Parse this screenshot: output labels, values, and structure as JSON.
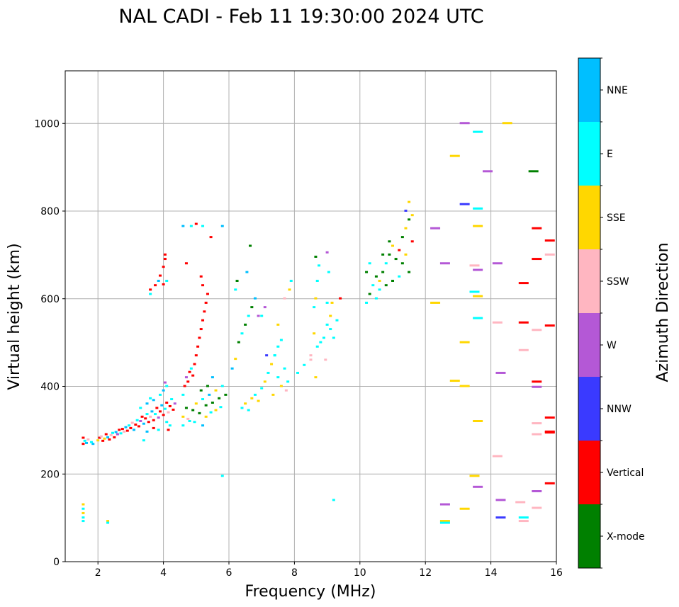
{
  "chart_data": {
    "type": "scatter",
    "title": "NAL CADI - Feb 11 19:30:00 2024 UTC",
    "xlabel": "Frequency (MHz)",
    "ylabel": "Virtual height (km)",
    "xlim": [
      1,
      16
    ],
    "ylim": [
      0,
      1120
    ],
    "xticks": [
      2,
      4,
      6,
      8,
      10,
      12,
      14,
      16
    ],
    "yticks": [
      0,
      200,
      400,
      600,
      800,
      1000
    ],
    "grid": true,
    "colorbar": {
      "title": "Azimuth Direction",
      "categories": [
        {
          "name": "X-mode",
          "color": "#008000"
        },
        {
          "name": "Vertical",
          "color": "#ff0000"
        },
        {
          "name": "NNW",
          "color": "#3a3aff"
        },
        {
          "name": "W",
          "color": "#b458d6"
        },
        {
          "name": "SSW",
          "color": "#ffb6c1"
        },
        {
          "name": "SSE",
          "color": "#ffd700"
        },
        {
          "name": "E",
          "color": "#00ffff"
        },
        {
          "name": "NNE",
          "color": "#00bfff"
        }
      ]
    },
    "points": [
      [
        1.55,
        282,
        "Vertical"
      ],
      [
        1.6,
        275,
        "E"
      ],
      [
        1.55,
        268,
        "Vertical"
      ],
      [
        1.65,
        270,
        "NNE"
      ],
      [
        1.7,
        278,
        "SSW"
      ],
      [
        1.8,
        272,
        "E"
      ],
      [
        1.85,
        268,
        "NNE"
      ],
      [
        2.0,
        276,
        "SSE"
      ],
      [
        2.05,
        282,
        "Vertical"
      ],
      [
        2.1,
        285,
        "SSW"
      ],
      [
        2.15,
        275,
        "Vertical"
      ],
      [
        2.2,
        280,
        "SSE"
      ],
      [
        2.25,
        290,
        "Vertical"
      ],
      [
        2.3,
        283,
        "NNE"
      ],
      [
        2.35,
        278,
        "Vertical"
      ],
      [
        2.4,
        288,
        "SSW"
      ],
      [
        2.45,
        293,
        "E"
      ],
      [
        2.5,
        283,
        "Vertical"
      ],
      [
        2.55,
        295,
        "NNE"
      ],
      [
        2.6,
        290,
        "W"
      ],
      [
        2.65,
        300,
        "Vertical"
      ],
      [
        2.7,
        292,
        "E"
      ],
      [
        2.75,
        302,
        "Vertical"
      ],
      [
        2.8,
        296,
        "SSW"
      ],
      [
        2.85,
        306,
        "NNE"
      ],
      [
        2.9,
        298,
        "Vertical"
      ],
      [
        2.95,
        310,
        "E"
      ],
      [
        3.0,
        304,
        "Vertical"
      ],
      [
        3.05,
        316,
        "SSW"
      ],
      [
        3.1,
        300,
        "NNE"
      ],
      [
        3.15,
        312,
        "Vertical"
      ],
      [
        3.2,
        322,
        "E"
      ],
      [
        3.25,
        308,
        "Vertical"
      ],
      [
        3.3,
        320,
        "W"
      ],
      [
        3.35,
        330,
        "Vertical"
      ],
      [
        3.4,
        314,
        "NNE"
      ],
      [
        3.45,
        326,
        "Vertical"
      ],
      [
        3.5,
        336,
        "E"
      ],
      [
        3.55,
        318,
        "Vertical"
      ],
      [
        3.6,
        330,
        "SSW"
      ],
      [
        3.65,
        342,
        "NNE"
      ],
      [
        3.7,
        322,
        "Vertical"
      ],
      [
        3.75,
        336,
        "E"
      ],
      [
        3.8,
        350,
        "Vertical"
      ],
      [
        3.85,
        328,
        "W"
      ],
      [
        3.9,
        342,
        "Vertical"
      ],
      [
        3.95,
        356,
        "NNE"
      ],
      [
        4.0,
        334,
        "Vertical"
      ],
      [
        4.05,
        348,
        "E"
      ],
      [
        4.1,
        362,
        "Vertical"
      ],
      [
        4.15,
        340,
        "SSW"
      ],
      [
        4.2,
        354,
        "Vertical"
      ],
      [
        4.25,
        370,
        "E"
      ],
      [
        4.3,
        346,
        "Vertical"
      ],
      [
        4.35,
        360,
        "W"
      ],
      [
        3.3,
        350,
        "E"
      ],
      [
        3.5,
        360,
        "NNE"
      ],
      [
        3.6,
        372,
        "E"
      ],
      [
        3.7,
        368,
        "NNE"
      ],
      [
        3.9,
        380,
        "E"
      ],
      [
        4.0,
        390,
        "NNE"
      ],
      [
        4.1,
        400,
        "E"
      ],
      [
        4.05,
        408,
        "W"
      ],
      [
        4.1,
        318,
        "E"
      ],
      [
        3.85,
        300,
        "E"
      ],
      [
        3.7,
        304,
        "Vertical"
      ],
      [
        3.5,
        296,
        "NNE"
      ],
      [
        3.4,
        276,
        "E"
      ],
      [
        4.15,
        300,
        "Vertical"
      ],
      [
        4.2,
        310,
        "E"
      ],
      [
        3.6,
        620,
        "Vertical"
      ],
      [
        3.6,
        610,
        "E"
      ],
      [
        3.75,
        630,
        "Vertical"
      ],
      [
        3.85,
        640,
        "NNE"
      ],
      [
        3.9,
        652,
        "Vertical"
      ],
      [
        4.0,
        672,
        "Vertical"
      ],
      [
        4.05,
        690,
        "Vertical"
      ],
      [
        4.05,
        700,
        "Vertical"
      ],
      [
        4.1,
        640,
        "E"
      ],
      [
        4.0,
        632,
        "Vertical"
      ],
      [
        4.6,
        380,
        "E"
      ],
      [
        4.65,
        400,
        "Vertical"
      ],
      [
        4.7,
        420,
        "W"
      ],
      [
        4.75,
        410,
        "Vertical"
      ],
      [
        4.8,
        432,
        "Vertical"
      ],
      [
        4.85,
        440,
        "E"
      ],
      [
        4.9,
        424,
        "Vertical"
      ],
      [
        4.95,
        450,
        "Vertical"
      ],
      [
        5.0,
        470,
        "Vertical"
      ],
      [
        5.05,
        490,
        "Vertical"
      ],
      [
        5.1,
        510,
        "Vertical"
      ],
      [
        5.15,
        530,
        "Vertical"
      ],
      [
        5.2,
        550,
        "Vertical"
      ],
      [
        5.25,
        570,
        "Vertical"
      ],
      [
        5.3,
        590,
        "Vertical"
      ],
      [
        5.35,
        610,
        "Vertical"
      ],
      [
        5.2,
        630,
        "Vertical"
      ],
      [
        5.15,
        650,
        "Vertical"
      ],
      [
        5.45,
        740,
        "Vertical"
      ],
      [
        4.7,
        680,
        "Vertical"
      ],
      [
        5.0,
        770,
        "Vertical"
      ],
      [
        4.6,
        765,
        "NNE"
      ],
      [
        4.85,
        765,
        "E"
      ],
      [
        5.2,
        765,
        "E"
      ],
      [
        5.8,
        765,
        "NNE"
      ],
      [
        4.6,
        330,
        "SSE"
      ],
      [
        4.7,
        350,
        "X-mode"
      ],
      [
        4.8,
        320,
        "E"
      ],
      [
        4.9,
        345,
        "X-mode"
      ],
      [
        5.0,
        360,
        "SSE"
      ],
      [
        5.1,
        338,
        "X-mode"
      ],
      [
        5.2,
        370,
        "E"
      ],
      [
        5.3,
        356,
        "X-mode"
      ],
      [
        5.4,
        380,
        "NNE"
      ],
      [
        5.5,
        362,
        "X-mode"
      ],
      [
        5.6,
        390,
        "SSE"
      ],
      [
        5.7,
        372,
        "X-mode"
      ],
      [
        5.8,
        400,
        "E"
      ],
      [
        5.9,
        380,
        "X-mode"
      ],
      [
        5.5,
        420,
        "NNE"
      ],
      [
        5.3,
        330,
        "SSE"
      ],
      [
        5.45,
        340,
        "E"
      ],
      [
        5.6,
        345,
        "SSE"
      ],
      [
        5.75,
        352,
        "E"
      ],
      [
        5.2,
        310,
        "NNE"
      ],
      [
        4.95,
        318,
        "E"
      ],
      [
        4.75,
        325,
        "SSW"
      ],
      [
        4.6,
        310,
        "E"
      ],
      [
        5.35,
        400,
        "X-mode"
      ],
      [
        5.15,
        390,
        "X-mode"
      ],
      [
        6.1,
        440,
        "NNE"
      ],
      [
        6.2,
        462,
        "SSE"
      ],
      [
        6.3,
        500,
        "X-mode"
      ],
      [
        6.4,
        520,
        "E"
      ],
      [
        6.5,
        540,
        "X-mode"
      ],
      [
        6.6,
        560,
        "E"
      ],
      [
        6.7,
        580,
        "X-mode"
      ],
      [
        6.8,
        600,
        "NNE"
      ],
      [
        6.2,
        620,
        "E"
      ],
      [
        6.25,
        640,
        "X-mode"
      ],
      [
        6.55,
        660,
        "NNE"
      ],
      [
        6.65,
        720,
        "X-mode"
      ],
      [
        6.4,
        350,
        "E"
      ],
      [
        6.5,
        360,
        "SSE"
      ],
      [
        6.6,
        345,
        "E"
      ],
      [
        6.7,
        372,
        "SSE"
      ],
      [
        6.8,
        380,
        "E"
      ],
      [
        6.9,
        366,
        "SSE"
      ],
      [
        7.0,
        395,
        "E"
      ],
      [
        7.1,
        410,
        "SSE"
      ],
      [
        7.2,
        430,
        "E"
      ],
      [
        7.3,
        450,
        "SSE"
      ],
      [
        7.4,
        470,
        "E"
      ],
      [
        7.5,
        490,
        "E"
      ],
      [
        7.6,
        505,
        "E"
      ],
      [
        7.0,
        560,
        "E"
      ],
      [
        7.1,
        580,
        "W"
      ],
      [
        7.15,
        470,
        "NNW"
      ],
      [
        6.9,
        560,
        "W"
      ],
      [
        7.35,
        380,
        "SSE"
      ],
      [
        7.5,
        420,
        "E"
      ],
      [
        7.6,
        400,
        "SSE"
      ],
      [
        7.7,
        440,
        "E"
      ],
      [
        7.75,
        390,
        "SSW"
      ],
      [
        7.8,
        410,
        "E"
      ],
      [
        7.7,
        600,
        "SSW"
      ],
      [
        7.9,
        640,
        "E"
      ],
      [
        7.85,
        620,
        "SSE"
      ],
      [
        7.5,
        540,
        "SSE"
      ],
      [
        7.4,
        470,
        "E"
      ],
      [
        8.1,
        430,
        "E"
      ],
      [
        8.3,
        448,
        "E"
      ],
      [
        8.5,
        470,
        "SSW"
      ],
      [
        8.7,
        490,
        "E"
      ],
      [
        8.9,
        510,
        "E"
      ],
      [
        9.1,
        530,
        "E"
      ],
      [
        9.3,
        550,
        "E"
      ],
      [
        8.6,
        520,
        "SSE"
      ],
      [
        8.8,
        500,
        "E"
      ],
      [
        9.0,
        540,
        "E"
      ],
      [
        8.6,
        580,
        "E"
      ],
      [
        8.65,
        600,
        "SSE"
      ],
      [
        8.7,
        640,
        "E"
      ],
      [
        8.65,
        695,
        "X-mode"
      ],
      [
        8.75,
        675,
        "E"
      ],
      [
        9.0,
        705,
        "W"
      ],
      [
        9.05,
        660,
        "E"
      ],
      [
        9.1,
        560,
        "SSE"
      ],
      [
        9.2,
        510,
        "E"
      ],
      [
        8.65,
        420,
        "SSE"
      ],
      [
        8.5,
        460,
        "SSW"
      ],
      [
        9.0,
        590,
        "E"
      ],
      [
        9.4,
        600,
        "Vertical"
      ],
      [
        9.2,
        140,
        "E"
      ],
      [
        8.95,
        460,
        "SSW"
      ],
      [
        10.2,
        590,
        "E"
      ],
      [
        10.3,
        610,
        "X-mode"
      ],
      [
        10.4,
        630,
        "E"
      ],
      [
        10.5,
        650,
        "X-mode"
      ],
      [
        10.6,
        640,
        "SSE"
      ],
      [
        10.7,
        660,
        "X-mode"
      ],
      [
        10.8,
        680,
        "E"
      ],
      [
        10.9,
        700,
        "X-mode"
      ],
      [
        11.0,
        720,
        "SSE"
      ],
      [
        11.1,
        690,
        "X-mode"
      ],
      [
        11.2,
        710,
        "Vertical"
      ],
      [
        11.3,
        740,
        "X-mode"
      ],
      [
        11.4,
        760,
        "SSE"
      ],
      [
        11.5,
        780,
        "X-mode"
      ],
      [
        11.6,
        730,
        "Vertical"
      ],
      [
        11.3,
        680,
        "X-mode"
      ],
      [
        11.4,
        700,
        "SSE"
      ],
      [
        11.5,
        660,
        "X-mode"
      ],
      [
        11.2,
        650,
        "E"
      ],
      [
        11.0,
        640,
        "X-mode"
      ],
      [
        10.6,
        620,
        "E"
      ],
      [
        10.8,
        630,
        "X-mode"
      ],
      [
        11.4,
        800,
        "NNW"
      ],
      [
        11.5,
        820,
        "SSE"
      ],
      [
        11.6,
        790,
        "SSE"
      ],
      [
        10.2,
        660,
        "X-mode"
      ],
      [
        10.3,
        680,
        "E"
      ],
      [
        10.5,
        600,
        "E"
      ],
      [
        10.7,
        700,
        "X-mode"
      ],
      [
        10.9,
        730,
        "X-mode"
      ],
      [
        12.3,
        760,
        "W"
      ],
      [
        12.6,
        680,
        "W"
      ],
      [
        12.3,
        590,
        "SSE"
      ],
      [
        12.9,
        925,
        "SSE"
      ],
      [
        13.2,
        815,
        "NNW"
      ],
      [
        13.2,
        1000,
        "W"
      ],
      [
        13.6,
        980,
        "E"
      ],
      [
        13.9,
        890,
        "W"
      ],
      [
        13.6,
        805,
        "E"
      ],
      [
        13.6,
        765,
        "SSE"
      ],
      [
        13.5,
        675,
        "SSW"
      ],
      [
        13.6,
        665,
        "W"
      ],
      [
        13.5,
        615,
        "E"
      ],
      [
        13.6,
        605,
        "SSE"
      ],
      [
        13.6,
        555,
        "E"
      ],
      [
        13.2,
        500,
        "SSE"
      ],
      [
        12.9,
        412,
        "SSE"
      ],
      [
        13.2,
        400,
        "SSE"
      ],
      [
        13.6,
        320,
        "SSE"
      ],
      [
        13.5,
        195,
        "SSE"
      ],
      [
        13.6,
        170,
        "W"
      ],
      [
        13.2,
        120,
        "SSE"
      ],
      [
        12.6,
        130,
        "W"
      ],
      [
        12.6,
        92,
        "SSE"
      ],
      [
        12.6,
        88,
        "E"
      ],
      [
        14.2,
        680,
        "W"
      ],
      [
        14.2,
        545,
        "SSW"
      ],
      [
        14.3,
        430,
        "W"
      ],
      [
        14.2,
        240,
        "SSW"
      ],
      [
        14.3,
        140,
        "W"
      ],
      [
        14.3,
        100,
        "NNW"
      ],
      [
        14.5,
        1000,
        "SSE"
      ],
      [
        15.0,
        635,
        "Vertical"
      ],
      [
        15.0,
        545,
        "Vertical"
      ],
      [
        15.0,
        482,
        "SSW"
      ],
      [
        14.9,
        135,
        "SSW"
      ],
      [
        15.0,
        100,
        "E"
      ],
      [
        15.0,
        92,
        "SSW"
      ],
      [
        15.3,
        890,
        "X-mode"
      ],
      [
        15.4,
        760,
        "Vertical"
      ],
      [
        15.4,
        690,
        "Vertical"
      ],
      [
        15.4,
        528,
        "SSW"
      ],
      [
        15.4,
        410,
        "Vertical"
      ],
      [
        15.4,
        398,
        "W"
      ],
      [
        15.4,
        315,
        "SSW"
      ],
      [
        15.4,
        290,
        "SSW"
      ],
      [
        15.4,
        160,
        "W"
      ],
      [
        15.4,
        122,
        "SSW"
      ],
      [
        15.8,
        732,
        "Vertical"
      ],
      [
        15.8,
        700,
        "SSW"
      ],
      [
        15.8,
        538,
        "Vertical"
      ],
      [
        15.8,
        328,
        "Vertical"
      ],
      [
        15.8,
        296,
        "Vertical"
      ],
      [
        15.8,
        178,
        "Vertical"
      ],
      [
        15.8,
        294,
        "Vertical"
      ],
      [
        1.55,
        130,
        "SSE"
      ],
      [
        1.55,
        120,
        "E"
      ],
      [
        1.55,
        110,
        "SSE"
      ],
      [
        1.55,
        100,
        "E"
      ],
      [
        1.55,
        92,
        "E"
      ],
      [
        2.3,
        92,
        "SSE"
      ],
      [
        2.3,
        88,
        "E"
      ],
      [
        5.8,
        195,
        "E"
      ],
      [
        9.15,
        590,
        "SSE"
      ]
    ]
  }
}
